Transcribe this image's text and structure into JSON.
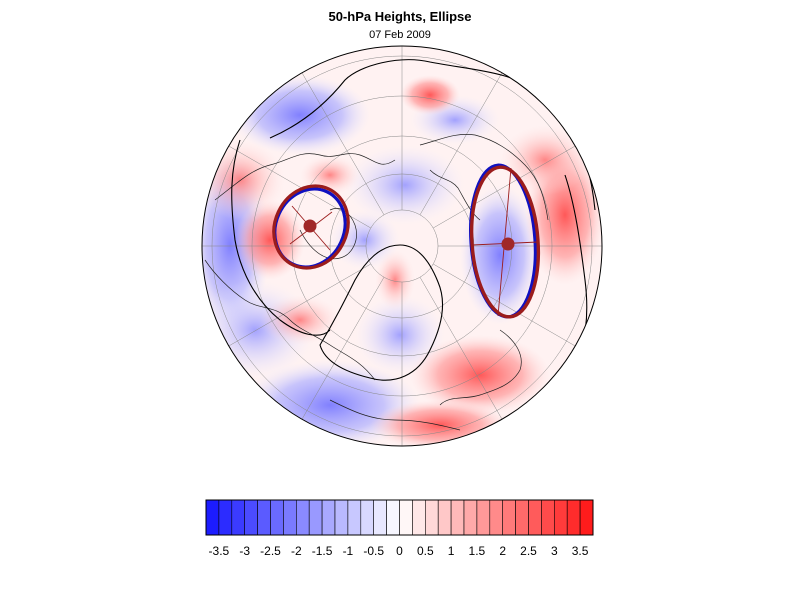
{
  "title": "50-hPa Heights, Ellipse",
  "subtitle": "07 Feb 2009",
  "colors": {
    "outline_blue": "#1010c0",
    "outline_red": "#9b1c1c",
    "center_dot": "#a02828",
    "negative_max": "#1010ff",
    "positive_max": "#ff1010"
  },
  "colorbar": {
    "levels": [
      -3.75,
      -3.5,
      -3.25,
      -3,
      -2.75,
      -2.5,
      -2.25,
      -2,
      -1.75,
      -1.5,
      -1.25,
      -1,
      -0.75,
      -0.5,
      -0.25,
      0,
      0.25,
      0.5,
      0.75,
      1,
      1.25,
      1.5,
      1.75,
      2,
      2.25,
      2.5,
      2.75,
      3,
      3.25,
      3.5,
      3.75
    ],
    "tick_labels": [
      "-3.5",
      "-3",
      "-2.5",
      "-2",
      "-1.5",
      "-1",
      "-0.5",
      "0",
      "0.5",
      "1",
      "1.5",
      "2",
      "2.5",
      "3",
      "3.5"
    ]
  },
  "map": {
    "projection": "polar-stereographic",
    "hemisphere": "north",
    "ellipses": [
      {
        "name": "ellipse-west"
      },
      {
        "name": "ellipse-east"
      }
    ]
  }
}
